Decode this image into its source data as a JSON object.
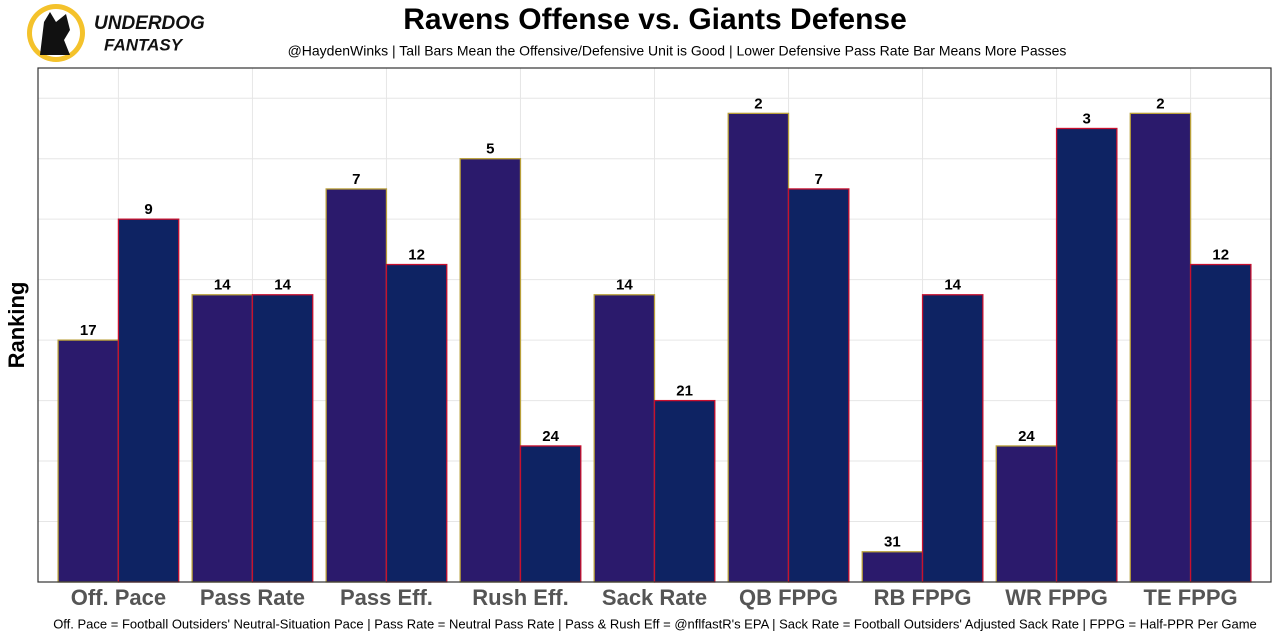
{
  "brand": {
    "line1": "UNDERDOG",
    "line2": "FANTASY"
  },
  "chart_data": {
    "type": "bar",
    "title": "Ravens Offense vs. Giants Defense",
    "subtitle": "@HaydenWinks | Tall Bars Mean the Offensive/Defensive Unit is Good | Lower Defensive Pass Rate Bar Means More Passes",
    "caption": "Off. Pace = Football Outsiders' Neutral-Situation Pace | Pass Rate = Neutral Pass Rate | Pass & Rush Eff = @nflfastR's EPA | Sack Rate = Football Outsiders' Adjusted Sack Rate | FPPG = Half-PPR Per Game",
    "ylabel": "Ranking",
    "categories": [
      "Off. Pace",
      "Pass Rate",
      "Pass Eff.",
      "Rush Eff.",
      "Sack Rate",
      "QB FPPG",
      "RB FPPG",
      "WR FPPG",
      "TE FPPG"
    ],
    "series": [
      {
        "color": "#2b1a6c",
        "edge": "#b9a03a",
        "values": [
          17,
          14,
          7,
          5,
          14,
          2,
          31,
          24,
          2
        ]
      },
      {
        "color": "#0e2363",
        "edge": "#c8102e",
        "values": [
          9,
          14,
          12,
          24,
          21,
          7,
          14,
          3,
          12
        ]
      }
    ],
    "ylim": [
      33,
      -1
    ],
    "yticks": [
      1,
      5,
      9,
      13,
      17,
      21,
      25,
      29
    ],
    "grid": true
  }
}
